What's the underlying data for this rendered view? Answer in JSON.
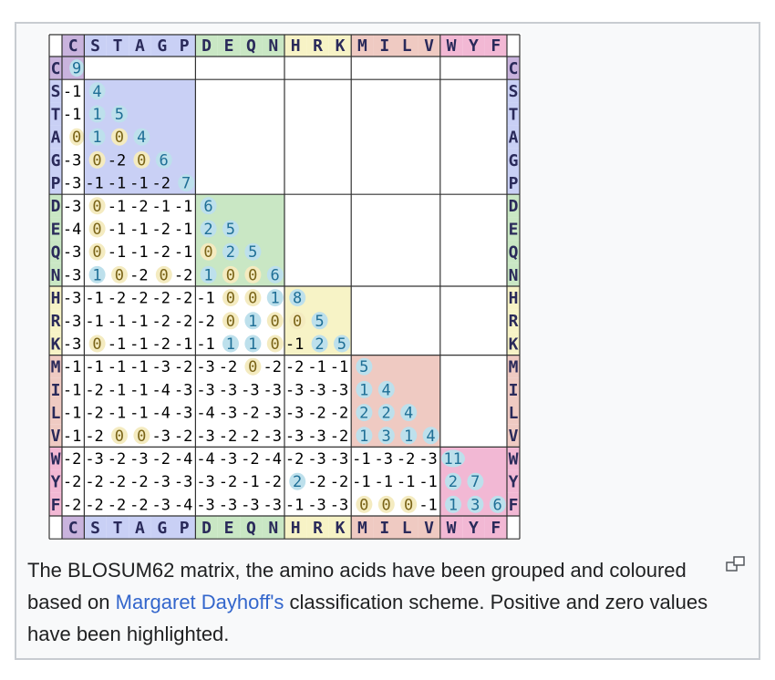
{
  "figure": {
    "caption": {
      "before": "The BLOSUM62 matrix, the amino acids have been grouped and coloured based on ",
      "link": "Margaret Dayhoff's",
      "after": " classification scheme. Positive and zero values have been highlighted."
    },
    "enlarge_icon": "magnify-clip-icon"
  },
  "chart_data": {
    "type": "heatmap",
    "title": "",
    "row_labels": [
      "C",
      "S",
      "T",
      "A",
      "G",
      "P",
      "D",
      "E",
      "Q",
      "N",
      "H",
      "R",
      "K",
      "M",
      "I",
      "L",
      "V",
      "W",
      "Y",
      "F"
    ],
    "col_labels": [
      "C",
      "S",
      "T",
      "A",
      "G",
      "P",
      "D",
      "E",
      "Q",
      "N",
      "H",
      "R",
      "K",
      "M",
      "I",
      "L",
      "V",
      "W",
      "Y",
      "F"
    ],
    "lower_triangle_values": [
      [
        9
      ],
      [
        -1,
        4
      ],
      [
        -1,
        1,
        5
      ],
      [
        0,
        1,
        0,
        4
      ],
      [
        -3,
        0,
        -2,
        0,
        6
      ],
      [
        -3,
        -1,
        -1,
        -1,
        -2,
        7
      ],
      [
        -3,
        0,
        -1,
        -2,
        -1,
        -1,
        6
      ],
      [
        -4,
        0,
        -1,
        -1,
        -2,
        -1,
        2,
        5
      ],
      [
        -3,
        0,
        -1,
        -1,
        -2,
        -1,
        0,
        2,
        5
      ],
      [
        -3,
        1,
        0,
        -2,
        0,
        -2,
        1,
        0,
        0,
        6
      ],
      [
        -3,
        -1,
        -2,
        -2,
        -2,
        -2,
        -1,
        0,
        0,
        1,
        8
      ],
      [
        -3,
        -1,
        -1,
        -1,
        -2,
        -2,
        -2,
        0,
        1,
        0,
        0,
        5
      ],
      [
        -3,
        0,
        -1,
        -1,
        -2,
        -1,
        -1,
        1,
        1,
        0,
        -1,
        2,
        5
      ],
      [
        -1,
        -1,
        -1,
        -1,
        -3,
        -2,
        -3,
        -2,
        0,
        -2,
        -2,
        -1,
        -1,
        5
      ],
      [
        -1,
        -2,
        -1,
        -1,
        -4,
        -3,
        -3,
        -3,
        -3,
        -3,
        -3,
        -3,
        -3,
        1,
        4
      ],
      [
        -1,
        -2,
        -1,
        -1,
        -4,
        -3,
        -4,
        -3,
        -2,
        -3,
        -3,
        -2,
        -2,
        2,
        2,
        4
      ],
      [
        -1,
        -2,
        0,
        0,
        -3,
        -2,
        -3,
        -2,
        -2,
        -3,
        -3,
        -3,
        -2,
        1,
        3,
        1,
        4
      ],
      [
        -2,
        -3,
        -2,
        -3,
        -2,
        -4,
        -4,
        -3,
        -2,
        -4,
        -2,
        -3,
        -3,
        -1,
        -3,
        -2,
        -3,
        11
      ],
      [
        -2,
        -2,
        -2,
        -2,
        -3,
        -3,
        -3,
        -2,
        -1,
        -2,
        2,
        -2,
        -2,
        -1,
        -1,
        -1,
        -1,
        2,
        7
      ],
      [
        -2,
        -2,
        -2,
        -2,
        -3,
        -4,
        -3,
        -3,
        -3,
        -3,
        -1,
        -3,
        -3,
        0,
        0,
        0,
        -1,
        1,
        3,
        6
      ]
    ],
    "groups": [
      {
        "members": [
          "C"
        ],
        "color": "#c9b3dd"
      },
      {
        "members": [
          "S",
          "T",
          "A",
          "G",
          "P"
        ],
        "color": "#c9d0f5"
      },
      {
        "members": [
          "D",
          "E",
          "Q",
          "N"
        ],
        "color": "#c9e7c4"
      },
      {
        "members": [
          "H",
          "R",
          "K"
        ],
        "color": "#f7f3c6"
      },
      {
        "members": [
          "M",
          "I",
          "L",
          "V"
        ],
        "color": "#efcac2"
      },
      {
        "members": [
          "W",
          "Y",
          "F"
        ],
        "color": "#f2b8d4"
      }
    ],
    "highlight": {
      "positive_text_color": "#1f6f96",
      "positive_circle_color": "#bde0ec",
      "zero_text_color": "#7a6418",
      "zero_circle_color": "#f4ebc0",
      "negative_text_color": "#000000"
    },
    "legend": "none"
  }
}
